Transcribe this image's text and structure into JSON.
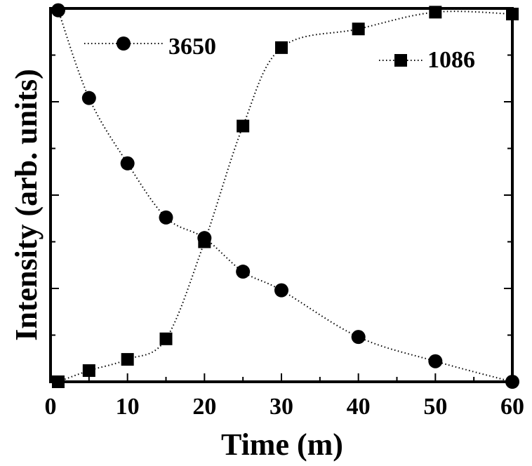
{
  "chart_data": {
    "type": "scatter",
    "xlabel": "Time (m)",
    "ylabel": "Intensity (arb. units)",
    "xlim": [
      0,
      60
    ],
    "ylim": [
      0,
      1
    ],
    "x_ticks": [
      "0",
      "10",
      "20",
      "30",
      "40",
      "50",
      "60"
    ],
    "y_tick_labels_shown": false,
    "grid": false,
    "line_style": "dotted",
    "legend_placement": "top",
    "series": [
      {
        "name": "3650",
        "marker": "circle",
        "x": [
          1,
          5,
          10,
          15,
          20,
          25,
          30,
          40,
          50,
          60
        ],
        "y": [
          0.995,
          0.76,
          0.585,
          0.44,
          0.385,
          0.295,
          0.245,
          0.12,
          0.055,
          0.0
        ]
      },
      {
        "name": "1086",
        "marker": "square",
        "x": [
          1,
          5,
          10,
          15,
          20,
          25,
          30,
          40,
          50,
          60
        ],
        "y": [
          0.0,
          0.03,
          0.06,
          0.115,
          0.375,
          0.685,
          0.895,
          0.945,
          0.99,
          0.985
        ]
      }
    ],
    "colors": {
      "marker": "#000000",
      "line": "#000000",
      "axis": "#000000"
    }
  }
}
